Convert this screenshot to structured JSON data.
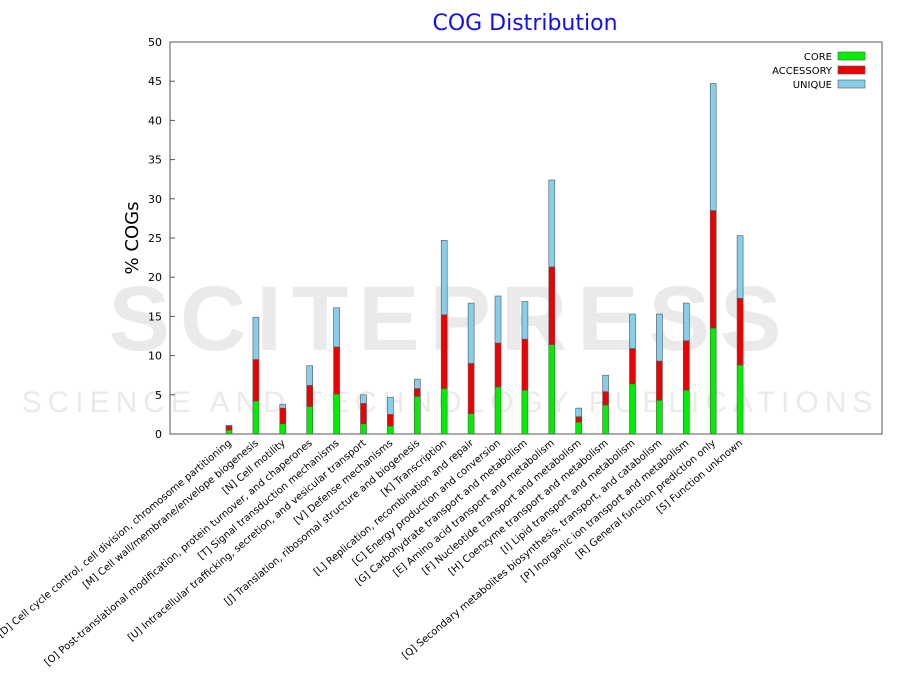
{
  "chart_data": {
    "type": "bar",
    "stacked": true,
    "title": "COG Distribution",
    "ylabel": "% COGs",
    "xlabel": "",
    "ylim": [
      0,
      50
    ],
    "yticks": [
      0,
      5,
      10,
      15,
      20,
      25,
      30,
      35,
      40,
      45,
      50
    ],
    "grid": false,
    "legend_position": "top-right",
    "colors": {
      "title": "#1010ee",
      "CORE": "#00ee00",
      "ACCESSORY": "#ee0000",
      "UNIQUE": "#87ceeb"
    },
    "categories": [
      "[D] Cell cycle control, cell division, chromosome partitioning",
      "[M] Cell wall/membrane/envelope biogenesis",
      "[N] Cell motility",
      "[O] Post-translational modification, protein turnover, and chaperones",
      "[T] Signal transduction mechanisms",
      "[U] Intracellular trafficking, secretion, and vesicular transport",
      "[V] Defense mechanisms",
      "[J] Translation, ribosomal structure and biogenesis",
      "[K] Transcription",
      "[L] Replication, recombination and repair",
      "[C] Energy production and conversion",
      "[G] Carbohydrate transport and metabolism",
      "[E] Amino acid transport and metabolism",
      "[F] Nucleotide transport and metabolism",
      "[H] Coenzyme transport and metabolism",
      "[I] Lipid transport and metabolism",
      "[Q] Secondary metabolites biosynthesis, transport, and catabolism",
      "[P] Inorganic ion transport and metabolism",
      "[R] General function prediction only",
      "[S] Function unknown"
    ],
    "series": [
      {
        "name": "CORE",
        "values": [
          0.5,
          4.2,
          1.3,
          3.5,
          5.1,
          1.3,
          1.0,
          4.8,
          5.8,
          2.6,
          6.0,
          5.6,
          11.4,
          1.5,
          3.7,
          6.4,
          4.3,
          5.6,
          13.5,
          8.8
        ]
      },
      {
        "name": "ACCESSORY",
        "values": [
          0.5,
          5.3,
          2.0,
          2.7,
          6.0,
          2.6,
          1.5,
          1.0,
          9.4,
          6.4,
          5.6,
          6.5,
          9.9,
          0.7,
          1.7,
          4.5,
          5.0,
          6.3,
          15.0,
          8.5
        ]
      },
      {
        "name": "UNIQUE",
        "values": [
          0.1,
          5.4,
          0.5,
          2.5,
          5.0,
          1.1,
          2.2,
          1.2,
          9.5,
          7.7,
          6.0,
          4.8,
          11.1,
          1.1,
          2.1,
          4.4,
          6.0,
          4.8,
          16.2,
          8.0
        ]
      }
    ]
  },
  "watermark": {
    "logo": "SCITEPRESS",
    "tagline": "SCIENCE AND TECHNOLOGY PUBLICATIONS"
  }
}
